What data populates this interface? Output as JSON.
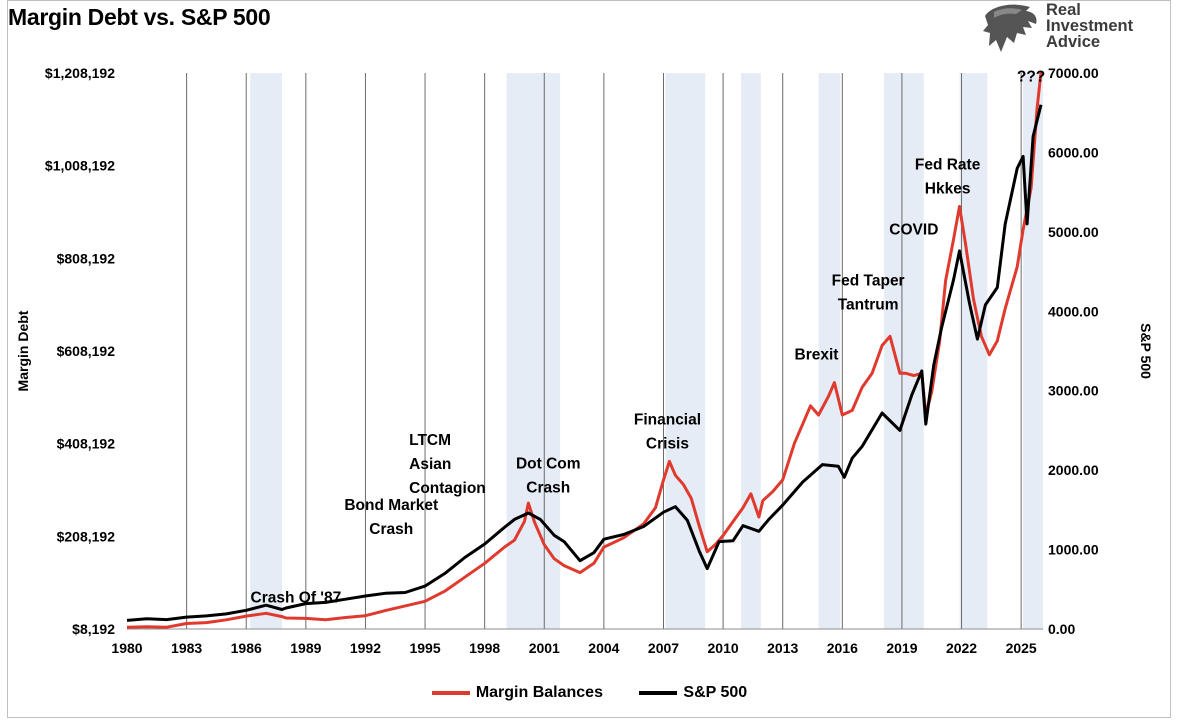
{
  "chart_data": {
    "type": "line",
    "title": "Margin Debt vs. S&P 500",
    "brand": [
      "Real",
      "Investment",
      "Advice"
    ],
    "ylabel_left": "Margin Debt",
    "ylabel_right": "S&P 500",
    "left_axis": {
      "min": 8192,
      "max": 1208192,
      "ticks": [
        "$8,192",
        "$208,192",
        "$408,192",
        "$608,192",
        "$808,192",
        "$1,008,192",
        "$1,208,192"
      ],
      "tick_values": [
        8192,
        208192,
        408192,
        608192,
        808192,
        1008192,
        1208192
      ]
    },
    "right_axis": {
      "min": 0,
      "max": 7000,
      "ticks": [
        "0.00",
        "1000.00",
        "2000.00",
        "3000.00",
        "4000.00",
        "5000.00",
        "6000.00",
        "7000.00"
      ],
      "tick_values": [
        0,
        1000,
        2000,
        3000,
        4000,
        5000,
        6000,
        7000
      ]
    },
    "x_axis": {
      "min": 1980,
      "max": 2026.1,
      "ticks": [
        "1980",
        "1983",
        "1986",
        "1989",
        "1992",
        "1995",
        "1998",
        "2001",
        "2004",
        "2007",
        "2010",
        "2013",
        "2016",
        "2019",
        "2022",
        "2025"
      ],
      "tick_positions": [
        1980,
        1983,
        1986,
        1989,
        1992,
        1995,
        1998,
        2001,
        2004,
        2007,
        2010,
        2013,
        2016,
        2019,
        2022,
        2025
      ]
    },
    "vertical_lines": [
      1983,
      1986,
      1989,
      1992,
      1995,
      1998,
      2001,
      2004,
      2007,
      2010,
      2013,
      2016,
      2019,
      2022,
      2025
    ],
    "shaded_periods": [
      [
        1986.2,
        1987.8
      ],
      [
        1999.1,
        2001.8
      ],
      [
        2007.1,
        2009.1
      ],
      [
        2010.9,
        2011.9
      ],
      [
        2014.8,
        2015.9
      ],
      [
        2018.1,
        2020.1
      ],
      [
        2021.9,
        2023.3
      ],
      [
        2025.1,
        2026.1
      ]
    ],
    "series": [
      {
        "name": "Margin Balances",
        "color": "#e03a2f",
        "axis": "left",
        "points": [
          [
            1980,
            12000
          ],
          [
            1981,
            13000
          ],
          [
            1982,
            12000
          ],
          [
            1983,
            20000
          ],
          [
            1984,
            22000
          ],
          [
            1985,
            28000
          ],
          [
            1986,
            36000
          ],
          [
            1987,
            42000
          ],
          [
            1987.8,
            35000
          ],
          [
            1988,
            32000
          ],
          [
            1989,
            31000
          ],
          [
            1990,
            28000
          ],
          [
            1991,
            33000
          ],
          [
            1992,
            37000
          ],
          [
            1993,
            48000
          ],
          [
            1994,
            58000
          ],
          [
            1995,
            68000
          ],
          [
            1996,
            90000
          ],
          [
            1997,
            120000
          ],
          [
            1998,
            150000
          ],
          [
            1999,
            185000
          ],
          [
            1999.5,
            200000
          ],
          [
            2000.0,
            240000
          ],
          [
            2000.2,
            280000
          ],
          [
            2000.5,
            240000
          ],
          [
            2001,
            190000
          ],
          [
            2001.5,
            160000
          ],
          [
            2002,
            145000
          ],
          [
            2002.8,
            130000
          ],
          [
            2003.5,
            150000
          ],
          [
            2004,
            185000
          ],
          [
            2005,
            205000
          ],
          [
            2006,
            235000
          ],
          [
            2006.6,
            270000
          ],
          [
            2007.0,
            330000
          ],
          [
            2007.3,
            370000
          ],
          [
            2007.6,
            340000
          ],
          [
            2008.0,
            320000
          ],
          [
            2008.4,
            290000
          ],
          [
            2008.8,
            230000
          ],
          [
            2009.2,
            175000
          ],
          [
            2009.6,
            190000
          ],
          [
            2010,
            210000
          ],
          [
            2010.5,
            240000
          ],
          [
            2011,
            270000
          ],
          [
            2011.4,
            300000
          ],
          [
            2011.8,
            250000
          ],
          [
            2012,
            285000
          ],
          [
            2012.5,
            305000
          ],
          [
            2013,
            330000
          ],
          [
            2013.6,
            410000
          ],
          [
            2014,
            450000
          ],
          [
            2014.4,
            490000
          ],
          [
            2014.8,
            470000
          ],
          [
            2015.3,
            510000
          ],
          [
            2015.6,
            540000
          ],
          [
            2016.0,
            470000
          ],
          [
            2016.5,
            480000
          ],
          [
            2017,
            530000
          ],
          [
            2017.5,
            560000
          ],
          [
            2018.0,
            620000
          ],
          [
            2018.4,
            640000
          ],
          [
            2018.9,
            560000
          ],
          [
            2019.2,
            560000
          ],
          [
            2019.6,
            555000
          ],
          [
            2020.0,
            560000
          ],
          [
            2020.2,
            470000
          ],
          [
            2020.5,
            520000
          ],
          [
            2020.9,
            630000
          ],
          [
            2021.2,
            760000
          ],
          [
            2021.6,
            850000
          ],
          [
            2021.9,
            920000
          ],
          [
            2022.2,
            840000
          ],
          [
            2022.6,
            720000
          ],
          [
            2023.0,
            640000
          ],
          [
            2023.4,
            600000
          ],
          [
            2023.8,
            630000
          ],
          [
            2024.2,
            700000
          ],
          [
            2024.8,
            790000
          ],
          [
            2025.1,
            870000
          ],
          [
            2025.5,
            960000
          ],
          [
            2025.8,
            1130000
          ],
          [
            2026.0,
            1210000
          ]
        ]
      },
      {
        "name": "S&P 500",
        "color": "#000000",
        "axis": "right",
        "points": [
          [
            1980,
            108
          ],
          [
            1981,
            130
          ],
          [
            1982,
            118
          ],
          [
            1983,
            150
          ],
          [
            1984,
            165
          ],
          [
            1985,
            190
          ],
          [
            1986,
            235
          ],
          [
            1987,
            300
          ],
          [
            1987.8,
            245
          ],
          [
            1988,
            265
          ],
          [
            1989,
            320
          ],
          [
            1990,
            335
          ],
          [
            1991,
            375
          ],
          [
            1992,
            415
          ],
          [
            1993,
            450
          ],
          [
            1994,
            460
          ],
          [
            1995,
            540
          ],
          [
            1996,
            700
          ],
          [
            1997,
            900
          ],
          [
            1998,
            1070
          ],
          [
            1999,
            1280
          ],
          [
            1999.5,
            1380
          ],
          [
            2000.2,
            1460
          ],
          [
            2000.8,
            1380
          ],
          [
            2001.5,
            1180
          ],
          [
            2002,
            1100
          ],
          [
            2002.8,
            860
          ],
          [
            2003.5,
            960
          ],
          [
            2004,
            1130
          ],
          [
            2005,
            1190
          ],
          [
            2006,
            1290
          ],
          [
            2007,
            1470
          ],
          [
            2007.6,
            1540
          ],
          [
            2008.2,
            1370
          ],
          [
            2008.8,
            980
          ],
          [
            2009.2,
            760
          ],
          [
            2009.8,
            1100
          ],
          [
            2010.5,
            1110
          ],
          [
            2011,
            1300
          ],
          [
            2011.8,
            1230
          ],
          [
            2012.3,
            1380
          ],
          [
            2013,
            1560
          ],
          [
            2014,
            1850
          ],
          [
            2015,
            2070
          ],
          [
            2015.8,
            2050
          ],
          [
            2016.1,
            1910
          ],
          [
            2016.5,
            2150
          ],
          [
            2017,
            2300
          ],
          [
            2018,
            2720
          ],
          [
            2018.9,
            2500
          ],
          [
            2019.5,
            2950
          ],
          [
            2020.0,
            3250
          ],
          [
            2020.2,
            2580
          ],
          [
            2020.6,
            3320
          ],
          [
            2021.0,
            3800
          ],
          [
            2021.6,
            4400
          ],
          [
            2021.9,
            4760
          ],
          [
            2022.4,
            4100
          ],
          [
            2022.8,
            3650
          ],
          [
            2023.2,
            4080
          ],
          [
            2023.8,
            4300
          ],
          [
            2024.2,
            5100
          ],
          [
            2024.8,
            5800
          ],
          [
            2025.1,
            5950
          ],
          [
            2025.3,
            5100
          ],
          [
            2025.6,
            6200
          ],
          [
            2026.0,
            6600
          ]
        ]
      }
    ],
    "annotations": [
      {
        "lines": [
          "Crash Of '87"
        ],
        "x": 1988.5,
        "y": 65000
      },
      {
        "lines": [
          "Bond Market",
          "Crash"
        ],
        "x": 1993.3,
        "y": 265000
      },
      {
        "lines": [
          "LTCM",
          "Asian",
          "Contagion"
        ],
        "x": 1994.2,
        "y": 405000,
        "align": "left"
      },
      {
        "lines": [
          "Dot Com",
          "Crash"
        ],
        "x": 2001.2,
        "y": 355000
      },
      {
        "lines": [
          "Financial",
          "Crisis"
        ],
        "x": 2007.2,
        "y": 450000
      },
      {
        "lines": [
          "Brexit"
        ],
        "x": 2014.7,
        "y": 590000
      },
      {
        "lines": [
          "Fed Taper",
          "Tantrum"
        ],
        "x": 2017.3,
        "y": 750000
      },
      {
        "lines": [
          "COVID"
        ],
        "x": 2019.6,
        "y": 860000
      },
      {
        "lines": [
          "Fed Rate",
          "Hkkes"
        ],
        "x": 2021.3,
        "y": 1000000
      },
      {
        "lines": [
          "???"
        ],
        "x": 2025.5,
        "y": 1190000
      }
    ]
  },
  "legend": {
    "margin_label": "Margin Balances",
    "sp_label": "S&P 500",
    "margin_color": "#e03a2f",
    "sp_color": "#000000"
  }
}
